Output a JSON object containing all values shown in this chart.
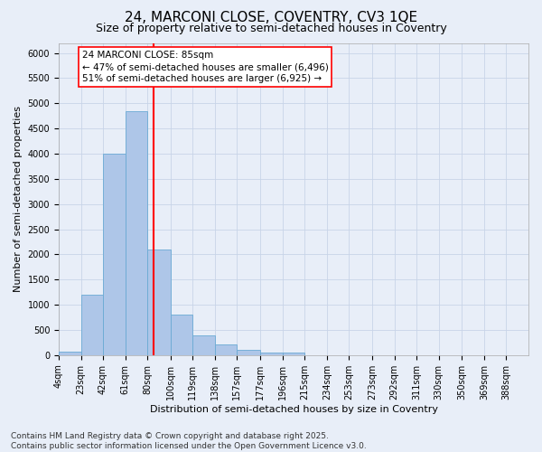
{
  "title_line1": "24, MARCONI CLOSE, COVENTRY, CV3 1QE",
  "title_line2": "Size of property relative to semi-detached houses in Coventry",
  "xlabel": "Distribution of semi-detached houses by size in Coventry",
  "ylabel": "Number of semi-detached properties",
  "bar_labels": [
    "4sqm",
    "23sqm",
    "42sqm",
    "61sqm",
    "80sqm",
    "100sqm",
    "119sqm",
    "138sqm",
    "157sqm",
    "177sqm",
    "196sqm",
    "215sqm",
    "234sqm",
    "253sqm",
    "273sqm",
    "292sqm",
    "311sqm",
    "330sqm",
    "350sqm",
    "369sqm",
    "388sqm"
  ],
  "bar_values": [
    75,
    1200,
    4000,
    4850,
    2100,
    810,
    400,
    210,
    105,
    60,
    50,
    0,
    0,
    0,
    0,
    0,
    0,
    0,
    0,
    0,
    0
  ],
  "bin_edges": [
    4,
    23,
    42,
    61,
    80,
    100,
    119,
    138,
    157,
    177,
    196,
    215,
    234,
    253,
    273,
    292,
    311,
    330,
    350,
    369,
    388,
    407
  ],
  "bar_color": "#aec6e8",
  "bar_edgecolor": "#6aaad4",
  "property_size": 85,
  "vline_color": "red",
  "annotation_text": "24 MARCONI CLOSE: 85sqm\n← 47% of semi-detached houses are smaller (6,496)\n51% of semi-detached houses are larger (6,925) →",
  "annotation_box_color": "white",
  "annotation_box_edgecolor": "red",
  "ylim": [
    0,
    6200
  ],
  "yticks": [
    0,
    500,
    1000,
    1500,
    2000,
    2500,
    3000,
    3500,
    4000,
    4500,
    5000,
    5500,
    6000
  ],
  "grid_color": "#c8d4e8",
  "background_color": "#e8eef8",
  "footer_line1": "Contains HM Land Registry data © Crown copyright and database right 2025.",
  "footer_line2": "Contains public sector information licensed under the Open Government Licence v3.0.",
  "title_fontsize": 11,
  "subtitle_fontsize": 9,
  "axis_label_fontsize": 8,
  "tick_fontsize": 7,
  "annotation_fontsize": 7.5,
  "footer_fontsize": 6.5
}
